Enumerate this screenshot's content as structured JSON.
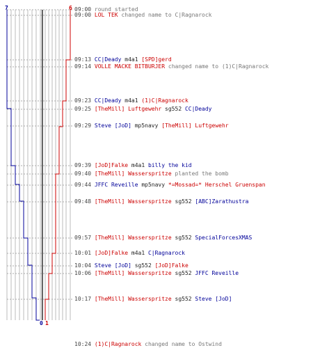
{
  "scores": {
    "blue_top": "7",
    "red_top": "6",
    "blue_bottom": "0",
    "red_bottom": "1"
  },
  "colors": {
    "team_red": "#cc0000",
    "team_blue": "#000099",
    "grid": "#bbbbbb",
    "divider": "#666666",
    "dashed_line": "#aaaaaa"
  },
  "log": [
    {
      "time": "09:00",
      "parts": [
        {
          "t": "round started",
          "c": "msg"
        }
      ]
    },
    {
      "time": "09:00",
      "parts": [
        {
          "t": "LOL TEK",
          "c": "red"
        },
        {
          "t": " changed name to C|Ragnarock",
          "c": "msg"
        }
      ]
    },
    {
      "time": "09:13",
      "parts": [
        {
          "t": "CC|Deady",
          "c": "blue"
        },
        {
          "t": " m4a1 ",
          "c": "plain"
        },
        {
          "t": "[SPD]gerd",
          "c": "red"
        }
      ]
    },
    {
      "time": "09:14",
      "parts": [
        {
          "t": "VOLLE MACKE BITBURJER",
          "c": "red"
        },
        {
          "t": " changed name to (1)C|Ragnarock",
          "c": "msg"
        }
      ]
    },
    {
      "time": "09:23",
      "parts": [
        {
          "t": "CC|Deady",
          "c": "blue"
        },
        {
          "t": " m4a1 ",
          "c": "plain"
        },
        {
          "t": "(1)C|Ragnarock",
          "c": "red"
        }
      ]
    },
    {
      "time": "09:25",
      "parts": [
        {
          "t": "[TheMill] Luftgewehr",
          "c": "red"
        },
        {
          "t": " sg552 ",
          "c": "plain"
        },
        {
          "t": "CC|Deady",
          "c": "blue"
        }
      ]
    },
    {
      "time": "09:29",
      "parts": [
        {
          "t": "Steve [JoD]",
          "c": "blue"
        },
        {
          "t": " mp5navy ",
          "c": "plain"
        },
        {
          "t": "[TheMill] Luftgewehr",
          "c": "red"
        }
      ]
    },
    {
      "time": "09:39",
      "parts": [
        {
          "t": "[JoD]Falke",
          "c": "red"
        },
        {
          "t": " m4a1 ",
          "c": "plain"
        },
        {
          "t": "billy the kid",
          "c": "blue"
        }
      ]
    },
    {
      "time": "09:40",
      "parts": [
        {
          "t": "[TheMill] Wasserspritze",
          "c": "red"
        },
        {
          "t": " planted the bomb",
          "c": "msg"
        }
      ]
    },
    {
      "time": "09:44",
      "parts": [
        {
          "t": "JFFC Reveille",
          "c": "blue"
        },
        {
          "t": " mp5navy ",
          "c": "plain"
        },
        {
          "t": "*=Mossad=* Herschel Gruenspan",
          "c": "red"
        }
      ]
    },
    {
      "time": "09:48",
      "parts": [
        {
          "t": "[TheMill] Wasserspritze",
          "c": "red"
        },
        {
          "t": " sg552 ",
          "c": "plain"
        },
        {
          "t": "[ABC]Zarathustra",
          "c": "blue"
        }
      ]
    },
    {
      "time": "09:57",
      "parts": [
        {
          "t": "[TheMill] Wasserspritze",
          "c": "red"
        },
        {
          "t": " sg552 ",
          "c": "plain"
        },
        {
          "t": "SpecialForcesXMAS",
          "c": "blue"
        }
      ]
    },
    {
      "time": "10:01",
      "parts": [
        {
          "t": "[JoD]Falke",
          "c": "red"
        },
        {
          "t": " m4a1 ",
          "c": "plain"
        },
        {
          "t": "C|Ragnarock",
          "c": "blue"
        }
      ]
    },
    {
      "time": "10:04",
      "parts": [
        {
          "t": "Steve [JoD]",
          "c": "blue"
        },
        {
          "t": " sg552 ",
          "c": "plain"
        },
        {
          "t": "[JoD]Falke",
          "c": "red"
        }
      ]
    },
    {
      "time": "10:06",
      "parts": [
        {
          "t": "[TheMill] Wasserspritze",
          "c": "red"
        },
        {
          "t": " sg552 ",
          "c": "plain"
        },
        {
          "t": "JFFC Reveille",
          "c": "blue"
        }
      ]
    },
    {
      "time": "10:17",
      "parts": [
        {
          "t": "[TheMill] Wasserspritze",
          "c": "red"
        },
        {
          "t": " sg552 ",
          "c": "plain"
        },
        {
          "t": "Steve [JoD]",
          "c": "blue"
        }
      ]
    },
    {
      "time": "10:24",
      "parts": [
        {
          "t": "(1)C|Ragnarock",
          "c": "red"
        },
        {
          "t": " changed name to Ostwind",
          "c": "msg"
        }
      ]
    }
  ]
}
